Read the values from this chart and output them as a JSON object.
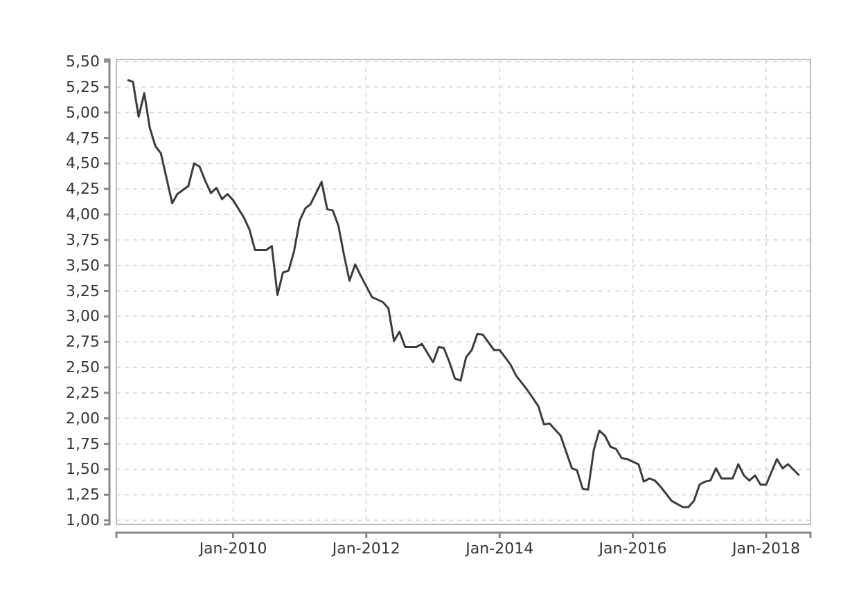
{
  "chart_data": {
    "type": "line",
    "x": [
      "2008-06",
      "2008-07",
      "2008-08",
      "2008-09",
      "2008-10",
      "2008-11",
      "2008-12",
      "2009-02",
      "2009-03",
      "2009-05",
      "2009-06",
      "2009-07",
      "2009-08",
      "2009-09",
      "2009-10",
      "2009-11",
      "2009-12",
      "2010-01",
      "2010-03",
      "2010-04",
      "2010-05",
      "2010-07",
      "2010-08",
      "2010-09",
      "2010-10",
      "2010-11",
      "2010-12",
      "2011-01",
      "2011-02",
      "2011-03",
      "2011-05",
      "2011-06",
      "2011-07",
      "2011-08",
      "2011-09",
      "2011-10",
      "2011-11",
      "2011-12",
      "2012-02",
      "2012-04",
      "2012-05",
      "2012-06",
      "2012-07",
      "2012-08",
      "2012-10",
      "2012-11",
      "2013-01",
      "2013-02",
      "2013-03",
      "2013-04",
      "2013-05",
      "2013-06",
      "2013-07",
      "2013-08",
      "2013-09",
      "2013-10",
      "2013-12",
      "2014-01",
      "2014-03",
      "2014-04",
      "2014-05",
      "2014-06",
      "2014-08",
      "2014-09",
      "2014-10",
      "2014-12",
      "2015-02",
      "2015-03",
      "2015-04",
      "2015-05",
      "2015-06",
      "2015-07",
      "2015-08",
      "2015-09",
      "2015-10",
      "2015-11",
      "2015-12",
      "2016-02",
      "2016-03",
      "2016-04",
      "2016-05",
      "2016-06",
      "2016-08",
      "2016-10",
      "2016-11",
      "2016-12",
      "2017-01",
      "2017-02",
      "2017-03",
      "2017-04",
      "2017-05",
      "2017-07",
      "2017-08",
      "2017-09",
      "2017-10",
      "2017-11",
      "2017-12",
      "2018-01",
      "2018-03",
      "2018-04",
      "2018-05",
      "2018-07"
    ],
    "series": [
      {
        "color": "#3c3c3c",
        "values": [
          5.32,
          5.3,
          4.96,
          5.19,
          4.85,
          4.67,
          4.6,
          4.11,
          4.2,
          4.28,
          4.5,
          4.47,
          4.33,
          4.21,
          4.26,
          4.15,
          4.2,
          4.14,
          3.97,
          3.85,
          3.65,
          3.65,
          3.69,
          3.21,
          3.43,
          3.45,
          3.64,
          3.94,
          4.06,
          4.1,
          4.32,
          4.05,
          4.04,
          3.89,
          3.6,
          3.35,
          3.51,
          3.4,
          3.19,
          3.14,
          3.08,
          2.76,
          2.85,
          2.7,
          2.7,
          2.73,
          2.55,
          2.7,
          2.69,
          2.55,
          2.39,
          2.37,
          2.6,
          2.67,
          2.83,
          2.82,
          2.67,
          2.67,
          2.53,
          2.42,
          2.35,
          2.28,
          2.12,
          1.94,
          1.95,
          1.83,
          1.51,
          1.49,
          1.31,
          1.3,
          1.69,
          1.88,
          1.83,
          1.72,
          1.7,
          1.61,
          1.6,
          1.55,
          1.38,
          1.41,
          1.39,
          1.33,
          1.19,
          1.13,
          1.13,
          1.19,
          1.35,
          1.38,
          1.39,
          1.51,
          1.41,
          1.41,
          1.55,
          1.44,
          1.39,
          1.44,
          1.35,
          1.35,
          1.6,
          1.51,
          1.55,
          1.44
        ]
      }
    ],
    "xlim": [
      "2008-04",
      "2018-09"
    ],
    "xticks": [
      {
        "value": "2010-01",
        "label": "Jan-2010"
      },
      {
        "value": "2012-01",
        "label": "Jan-2012"
      },
      {
        "value": "2014-01",
        "label": "Jan-2014"
      },
      {
        "value": "2016-01",
        "label": "Jan-2016"
      },
      {
        "value": "2018-01",
        "label": "Jan-2018"
      }
    ],
    "ylim": [
      0.96,
      5.52
    ],
    "yticks": [
      {
        "value": 1,
        "label": "1,00"
      },
      {
        "value": 1.25,
        "label": "1,25"
      },
      {
        "value": 1.5,
        "label": "1,50"
      },
      {
        "value": 1.75,
        "label": "1,75"
      },
      {
        "value": 2,
        "label": "2,00"
      },
      {
        "value": 2.25,
        "label": "2,25"
      },
      {
        "value": 2.5,
        "label": "2,50"
      },
      {
        "value": 2.75,
        "label": "2,75"
      },
      {
        "value": 3,
        "label": "3,00"
      },
      {
        "value": 3.25,
        "label": "3,25"
      },
      {
        "value": 3.5,
        "label": "3,50"
      },
      {
        "value": 3.75,
        "label": "3,75"
      },
      {
        "value": 4,
        "label": "4,00"
      },
      {
        "value": 4.25,
        "label": "4,25"
      },
      {
        "value": 4.5,
        "label": "4,50"
      },
      {
        "value": 4.75,
        "label": "4,75"
      },
      {
        "value": 5,
        "label": "5,00"
      },
      {
        "value": 5.25,
        "label": "5,25"
      },
      {
        "value": 5.5,
        "label": "5,50"
      }
    ],
    "grid": true,
    "line_style": "solid",
    "marker": "none"
  }
}
